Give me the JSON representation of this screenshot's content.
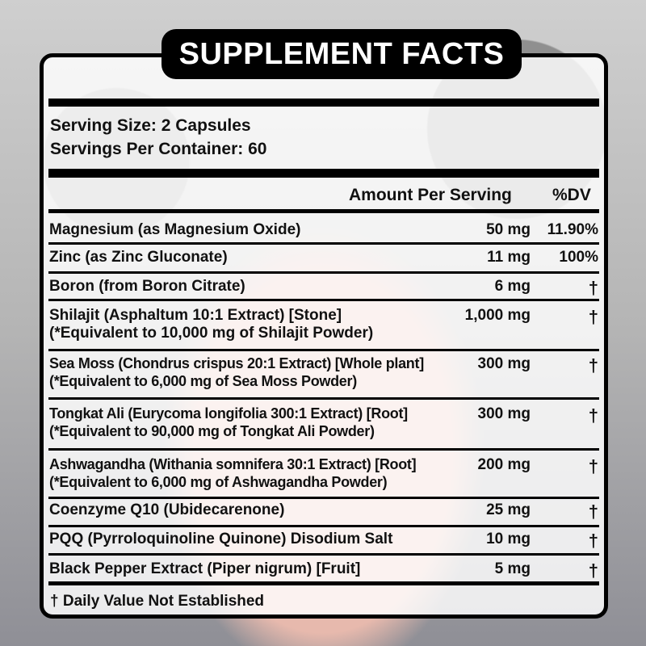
{
  "title": "SUPPLEMENT FACTS",
  "serving_size": "Serving Size: 2 Capsules",
  "servings_per_container": "Servings Per Container: 60",
  "columns": {
    "amount": "Amount Per Serving",
    "dv": "%DV"
  },
  "rows": [
    {
      "name": "Magnesium (as Magnesium Oxide)",
      "amount": "50 mg",
      "dv": "11.90%"
    },
    {
      "name": "Zinc (as Zinc Gluconate)",
      "amount": "11 mg",
      "dv": "100%"
    },
    {
      "name": "Boron (from Boron Citrate)",
      "amount": "6 mg",
      "dv": "†"
    },
    {
      "name": "Shilajit (Asphaltum 10:1 Extract) [Stone]",
      "sub": "(*Equivalent to 10,000 mg of Shilajit Powder)",
      "amount": "1,000 mg",
      "dv": "†"
    },
    {
      "name": "Sea Moss (Chondrus crispus 20:1 Extract) [Whole plant]",
      "sub": "(*Equivalent to 6,000 mg of Sea Moss Powder)",
      "amount": "300 mg",
      "dv": "†"
    },
    {
      "name": "Tongkat Ali (Eurycoma longifolia 300:1 Extract) [Root]",
      "sub": "(*Equivalent to 90,000 mg of Tongkat Ali Powder)",
      "amount": "300 mg",
      "dv": "†"
    },
    {
      "name": "Ashwagandha (Withania somnifera 30:1 Extract) [Root]",
      "sub": "(*Equivalent to 6,000 mg of Ashwagandha Powder)",
      "amount": "200 mg",
      "dv": "†"
    },
    {
      "name": "Coenzyme Q10 (Ubidecarenone)",
      "amount": "25 mg",
      "dv": "†"
    },
    {
      "name": "PQQ (Pyrroloquinoline Quinone) Disodium Salt",
      "amount": "10 mg",
      "dv": "†"
    },
    {
      "name": "Black Pepper Extract (Piper nigrum) [Fruit]",
      "amount": "5 mg",
      "dv": "†"
    }
  ],
  "footnote": "† Daily Value Not Established"
}
